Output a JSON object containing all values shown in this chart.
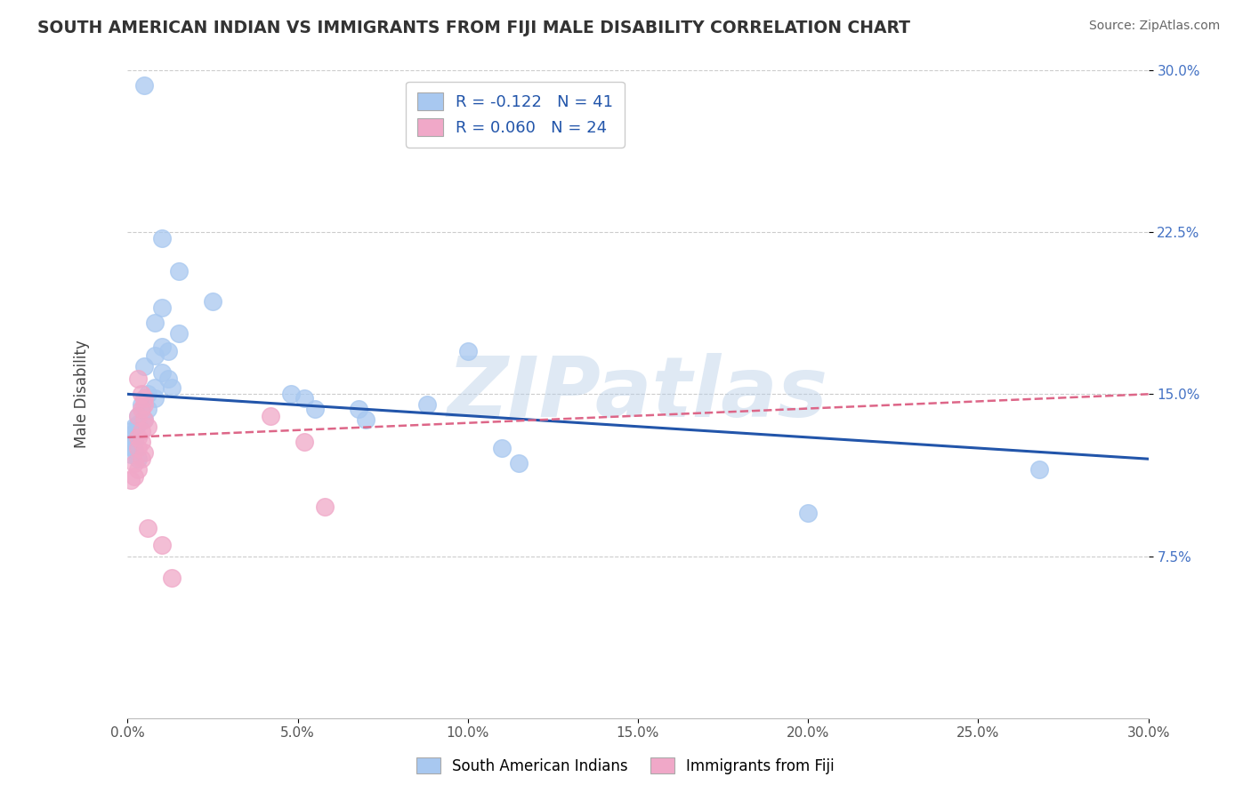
{
  "title": "SOUTH AMERICAN INDIAN VS IMMIGRANTS FROM FIJI MALE DISABILITY CORRELATION CHART",
  "source": "Source: ZipAtlas.com",
  "ylabel": "Male Disability",
  "watermark": "ZIPatlas",
  "xlim": [
    0.0,
    0.3
  ],
  "ylim": [
    0.0,
    0.3
  ],
  "xticks": [
    0.0,
    0.05,
    0.1,
    0.15,
    0.2,
    0.25,
    0.3
  ],
  "yticks": [
    0.075,
    0.15,
    0.225,
    0.3
  ],
  "ytick_labels": [
    "7.5%",
    "15.0%",
    "22.5%",
    "30.0%"
  ],
  "xtick_labels": [
    "0.0%",
    "5.0%",
    "10.0%",
    "15.0%",
    "20.0%",
    "25.0%",
    "30.0%"
  ],
  "blue_R": -0.122,
  "blue_N": 41,
  "pink_R": 0.06,
  "pink_N": 24,
  "legend_label_blue": "South American Indians",
  "legend_label_pink": "Immigrants from Fiji",
  "blue_color": "#a8c8f0",
  "pink_color": "#f0a8c8",
  "blue_line_color": "#2255aa",
  "pink_line_color": "#dd6688",
  "blue_scatter": [
    [
      0.005,
      0.293
    ],
    [
      0.01,
      0.222
    ],
    [
      0.015,
      0.207
    ],
    [
      0.01,
      0.19
    ],
    [
      0.008,
      0.183
    ],
    [
      0.015,
      0.178
    ],
    [
      0.01,
      0.172
    ],
    [
      0.012,
      0.17
    ],
    [
      0.008,
      0.168
    ],
    [
      0.005,
      0.163
    ],
    [
      0.01,
      0.16
    ],
    [
      0.012,
      0.157
    ],
    [
      0.008,
      0.153
    ],
    [
      0.013,
      0.153
    ],
    [
      0.006,
      0.15
    ],
    [
      0.008,
      0.148
    ],
    [
      0.004,
      0.145
    ],
    [
      0.006,
      0.143
    ],
    [
      0.003,
      0.14
    ],
    [
      0.005,
      0.138
    ],
    [
      0.003,
      0.136
    ],
    [
      0.002,
      0.135
    ],
    [
      0.001,
      0.133
    ],
    [
      0.001,
      0.131
    ],
    [
      0.002,
      0.128
    ],
    [
      0.001,
      0.126
    ],
    [
      0.002,
      0.124
    ],
    [
      0.001,
      0.122
    ],
    [
      0.003,
      0.12
    ],
    [
      0.025,
      0.193
    ],
    [
      0.048,
      0.15
    ],
    [
      0.052,
      0.148
    ],
    [
      0.055,
      0.143
    ],
    [
      0.068,
      0.143
    ],
    [
      0.07,
      0.138
    ],
    [
      0.088,
      0.145
    ],
    [
      0.1,
      0.17
    ],
    [
      0.11,
      0.125
    ],
    [
      0.115,
      0.118
    ],
    [
      0.2,
      0.095
    ],
    [
      0.268,
      0.115
    ]
  ],
  "pink_scatter": [
    [
      0.003,
      0.157
    ],
    [
      0.004,
      0.15
    ],
    [
      0.005,
      0.148
    ],
    [
      0.005,
      0.145
    ],
    [
      0.004,
      0.143
    ],
    [
      0.003,
      0.14
    ],
    [
      0.005,
      0.138
    ],
    [
      0.006,
      0.135
    ],
    [
      0.004,
      0.133
    ],
    [
      0.003,
      0.13
    ],
    [
      0.004,
      0.128
    ],
    [
      0.003,
      0.125
    ],
    [
      0.005,
      0.123
    ],
    [
      0.004,
      0.12
    ],
    [
      0.002,
      0.118
    ],
    [
      0.003,
      0.115
    ],
    [
      0.002,
      0.112
    ],
    [
      0.001,
      0.11
    ],
    [
      0.042,
      0.14
    ],
    [
      0.052,
      0.128
    ],
    [
      0.058,
      0.098
    ],
    [
      0.006,
      0.088
    ],
    [
      0.01,
      0.08
    ],
    [
      0.013,
      0.065
    ]
  ],
  "background_color": "#ffffff",
  "grid_color": "#cccccc",
  "title_color": "#333333",
  "source_color": "#666666",
  "ylabel_color": "#444444",
  "ytick_color": "#4472c4",
  "xtick_color": "#555555"
}
